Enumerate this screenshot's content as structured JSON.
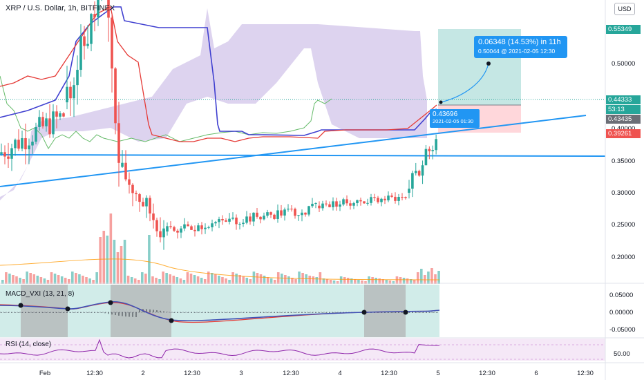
{
  "header": {
    "symbol": "XRP / U.S. Dollar, 1h, BITFINEX",
    "currency_button": "USD"
  },
  "panes": {
    "macd_title": "MACD_VXI (13, 21, 8)",
    "rsi_title": "RSI (14, close)"
  },
  "price_tags": {
    "target": "0.55349",
    "last": "0.44333",
    "countdown": "53:13",
    "open": "0.43435",
    "stop": "0.39261"
  },
  "colors": {
    "up": "#26a69a",
    "down": "#ef5350",
    "cloud": "#b39ddb",
    "trendline": "#2196f3",
    "kijun": "#3f3fd0",
    "tenkan": "#e53935",
    "chikou": "#66bb6a",
    "macd_line": "#3f51b5",
    "rsi": "#8e24aa",
    "target_zone": "#b2dfdb",
    "stop_zone": "#ffcdd2"
  },
  "measure": {
    "line1": "0.06348 (14.53%) in 11h",
    "line2": "0.50044 @ 2021-02-05  12:30"
  },
  "entry": {
    "price": "0.43696",
    "time": "2021-02-05 01:30"
  },
  "chart_data": {
    "type": "candlestick",
    "title": "XRP / U.S. Dollar, 1h, BITFINEX",
    "price_axis": {
      "ticks": [
        "0.50000",
        "0.45000",
        "0.40000",
        "0.35000",
        "0.30000",
        "0.25000",
        "0.20000"
      ],
      "ylim": [
        0.15,
        0.57
      ]
    },
    "time_axis": {
      "ticks": [
        "Feb",
        "12:30",
        "2",
        "12:30",
        "3",
        "12:30",
        "4",
        "12:30",
        "5",
        "12:30",
        "6",
        "12:30"
      ]
    },
    "candles_approx": [
      {
        "t": "Feb 1 00:00",
        "o": 0.43,
        "h": 0.46,
        "l": 0.42,
        "c": 0.45
      },
      {
        "t": "Feb 1 06:00",
        "o": 0.47,
        "h": 0.53,
        "l": 0.46,
        "c": 0.5
      },
      {
        "t": "Feb 1 12:00",
        "o": 0.52,
        "h": 0.59,
        "l": 0.5,
        "c": 0.56
      },
      {
        "t": "Feb 1 18:00",
        "o": 0.5,
        "h": 0.53,
        "l": 0.41,
        "c": 0.43
      },
      {
        "t": "Feb 2 00:00",
        "o": 0.42,
        "h": 0.43,
        "l": 0.38,
        "c": 0.395
      },
      {
        "t": "Feb 2 06:00",
        "o": 0.38,
        "h": 0.4,
        "l": 0.34,
        "c": 0.355
      },
      {
        "t": "Feb 2 12:00",
        "o": 0.37,
        "h": 0.39,
        "l": 0.36,
        "c": 0.37
      },
      {
        "t": "Feb 3 00:00",
        "o": 0.376,
        "h": 0.39,
        "l": 0.365,
        "c": 0.378
      },
      {
        "t": "Feb 3 12:00",
        "o": 0.38,
        "h": 0.39,
        "l": 0.37,
        "c": 0.382
      },
      {
        "t": "Feb 4 00:00",
        "o": 0.386,
        "h": 0.4,
        "l": 0.38,
        "c": 0.39
      },
      {
        "t": "Feb 4 12:00",
        "o": 0.39,
        "h": 0.405,
        "l": 0.385,
        "c": 0.395
      },
      {
        "t": "Feb 4 20:00",
        "o": 0.4,
        "h": 0.44,
        "l": 0.395,
        "c": 0.43
      },
      {
        "t": "Feb 5 02:00",
        "o": 0.434,
        "h": 0.45,
        "l": 0.43,
        "c": 0.4433
      }
    ],
    "volume_axis_note": "volume histogram, no scale",
    "macd": {
      "axis_ticks": [
        "0.05000",
        "0.00000",
        "-0.05000"
      ],
      "ylim": [
        -0.07,
        0.07
      ]
    },
    "rsi": {
      "axis_ticks": [
        "50.00"
      ],
      "ylim": [
        0,
        100
      ]
    },
    "annotations": {
      "measure": "0.06348 (14.53%) in 11h",
      "target_price": 0.55349,
      "entry_price": 0.43696,
      "stop_price": 0.39261
    }
  }
}
